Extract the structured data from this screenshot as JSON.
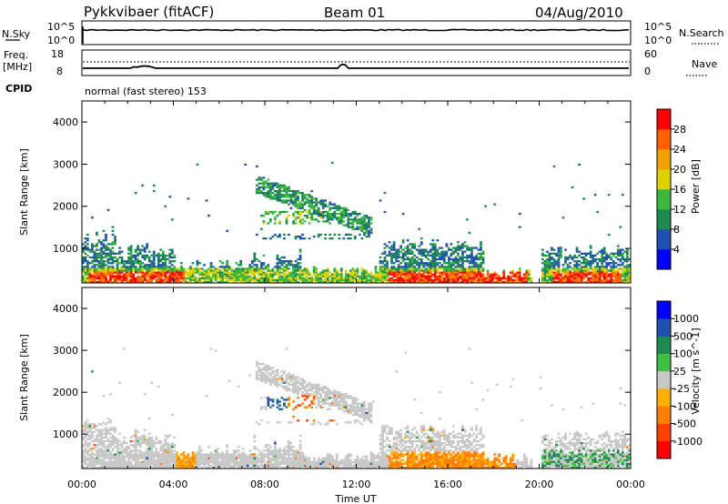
{
  "header": {
    "station": "Pykkvibaer (fitACF)",
    "beam": "Beam 01",
    "date": "04/Aug/2010"
  },
  "top_labels": {
    "nsky": "N.Sky",
    "nsky_hi": "10^5",
    "nsky_lo": "10^0",
    "nsearch": "N.Search",
    "nsearch_hi": "10^5",
    "nsearch_lo": "10^0",
    "freq": "Freq.",
    "freq_unit": "[MHz]",
    "freq_hi": "18",
    "freq_lo": "8",
    "nave": "Nave",
    "nave_hi": "60",
    "nave_lo": "0",
    "cpid": "CPID",
    "cpid_text": "normal (fast stereo) 153"
  },
  "colors": {
    "power": [
      "#0000ff",
      "#2050b0",
      "#1f8a50",
      "#3cb83c",
      "#e0d000",
      "#f0a000",
      "#ff6000",
      "#ff0000"
    ],
    "velocity": [
      "#ff0000",
      "#ff4000",
      "#ff8000",
      "#ffb000",
      "#c8c8c8",
      "#40c040",
      "#1f8a50",
      "#2050b0",
      "#0000ff"
    ]
  },
  "chart_data": [
    {
      "type": "heatmap",
      "name": "Power",
      "ylabel": "Slant Range [km]",
      "colorbar_label": "Power [dB]",
      "colorbar_ticks": [
        "28",
        "24",
        "20",
        "16",
        "12",
        "8",
        "4"
      ],
      "ylim": [
        180,
        4500
      ],
      "yticks": [
        "1000",
        "2000",
        "3000",
        "4000"
      ]
    },
    {
      "type": "heatmap",
      "name": "Velocity",
      "ylabel": "Slant Range [km]",
      "colorbar_label": "Velocity [m s^-1]",
      "colorbar_ticks": [
        "1000",
        "500",
        "100",
        "25",
        "-25",
        "-100",
        "-500",
        "-1000"
      ],
      "ylim": [
        180,
        4500
      ],
      "yticks": [
        "1000",
        "2000",
        "3000",
        "4000"
      ]
    }
  ],
  "xaxis": {
    "label": "Time UT",
    "ticks": [
      "00:00",
      "04:00",
      "08:00",
      "12:00",
      "16:00",
      "20:00",
      "00:00"
    ]
  }
}
